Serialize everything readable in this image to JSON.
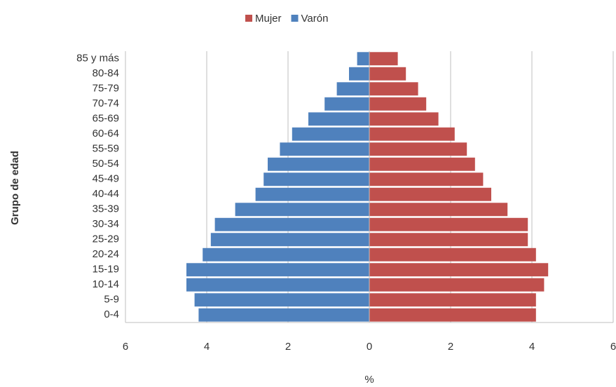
{
  "chart_data": {
    "type": "pyramid",
    "y_label": "Grupo de edad",
    "x_label": "%",
    "categories": [
      "0-4",
      "5-9",
      "10-14",
      "15-19",
      "20-24",
      "25-29",
      "30-34",
      "35-39",
      "40-44",
      "45-49",
      "50-54",
      "55-59",
      "60-64",
      "65-69",
      "70-74",
      "75-79",
      "80-84",
      "85 y más"
    ],
    "series": [
      {
        "name": "Mujer",
        "color": "#c0504d",
        "values": [
          4.1,
          4.1,
          4.3,
          4.4,
          4.1,
          3.9,
          3.9,
          3.4,
          3.0,
          2.8,
          2.6,
          2.4,
          2.1,
          1.7,
          1.4,
          1.2,
          0.9,
          0.7
        ]
      },
      {
        "name": "Varón",
        "color": "#4f81bd",
        "values": [
          -4.2,
          -4.3,
          -4.5,
          -4.5,
          -4.1,
          -3.9,
          -3.8,
          -3.3,
          -2.8,
          -2.6,
          -2.5,
          -2.2,
          -1.9,
          -1.5,
          -1.1,
          -0.8,
          -0.5,
          -0.3
        ]
      }
    ],
    "xlim": [
      -6,
      6
    ],
    "xticks": [
      {
        "value": -6,
        "label": "6"
      },
      {
        "value": -4,
        "label": "4"
      },
      {
        "value": -2,
        "label": "2"
      },
      0,
      2,
      4,
      6
    ],
    "grid": true,
    "legend": "top"
  }
}
